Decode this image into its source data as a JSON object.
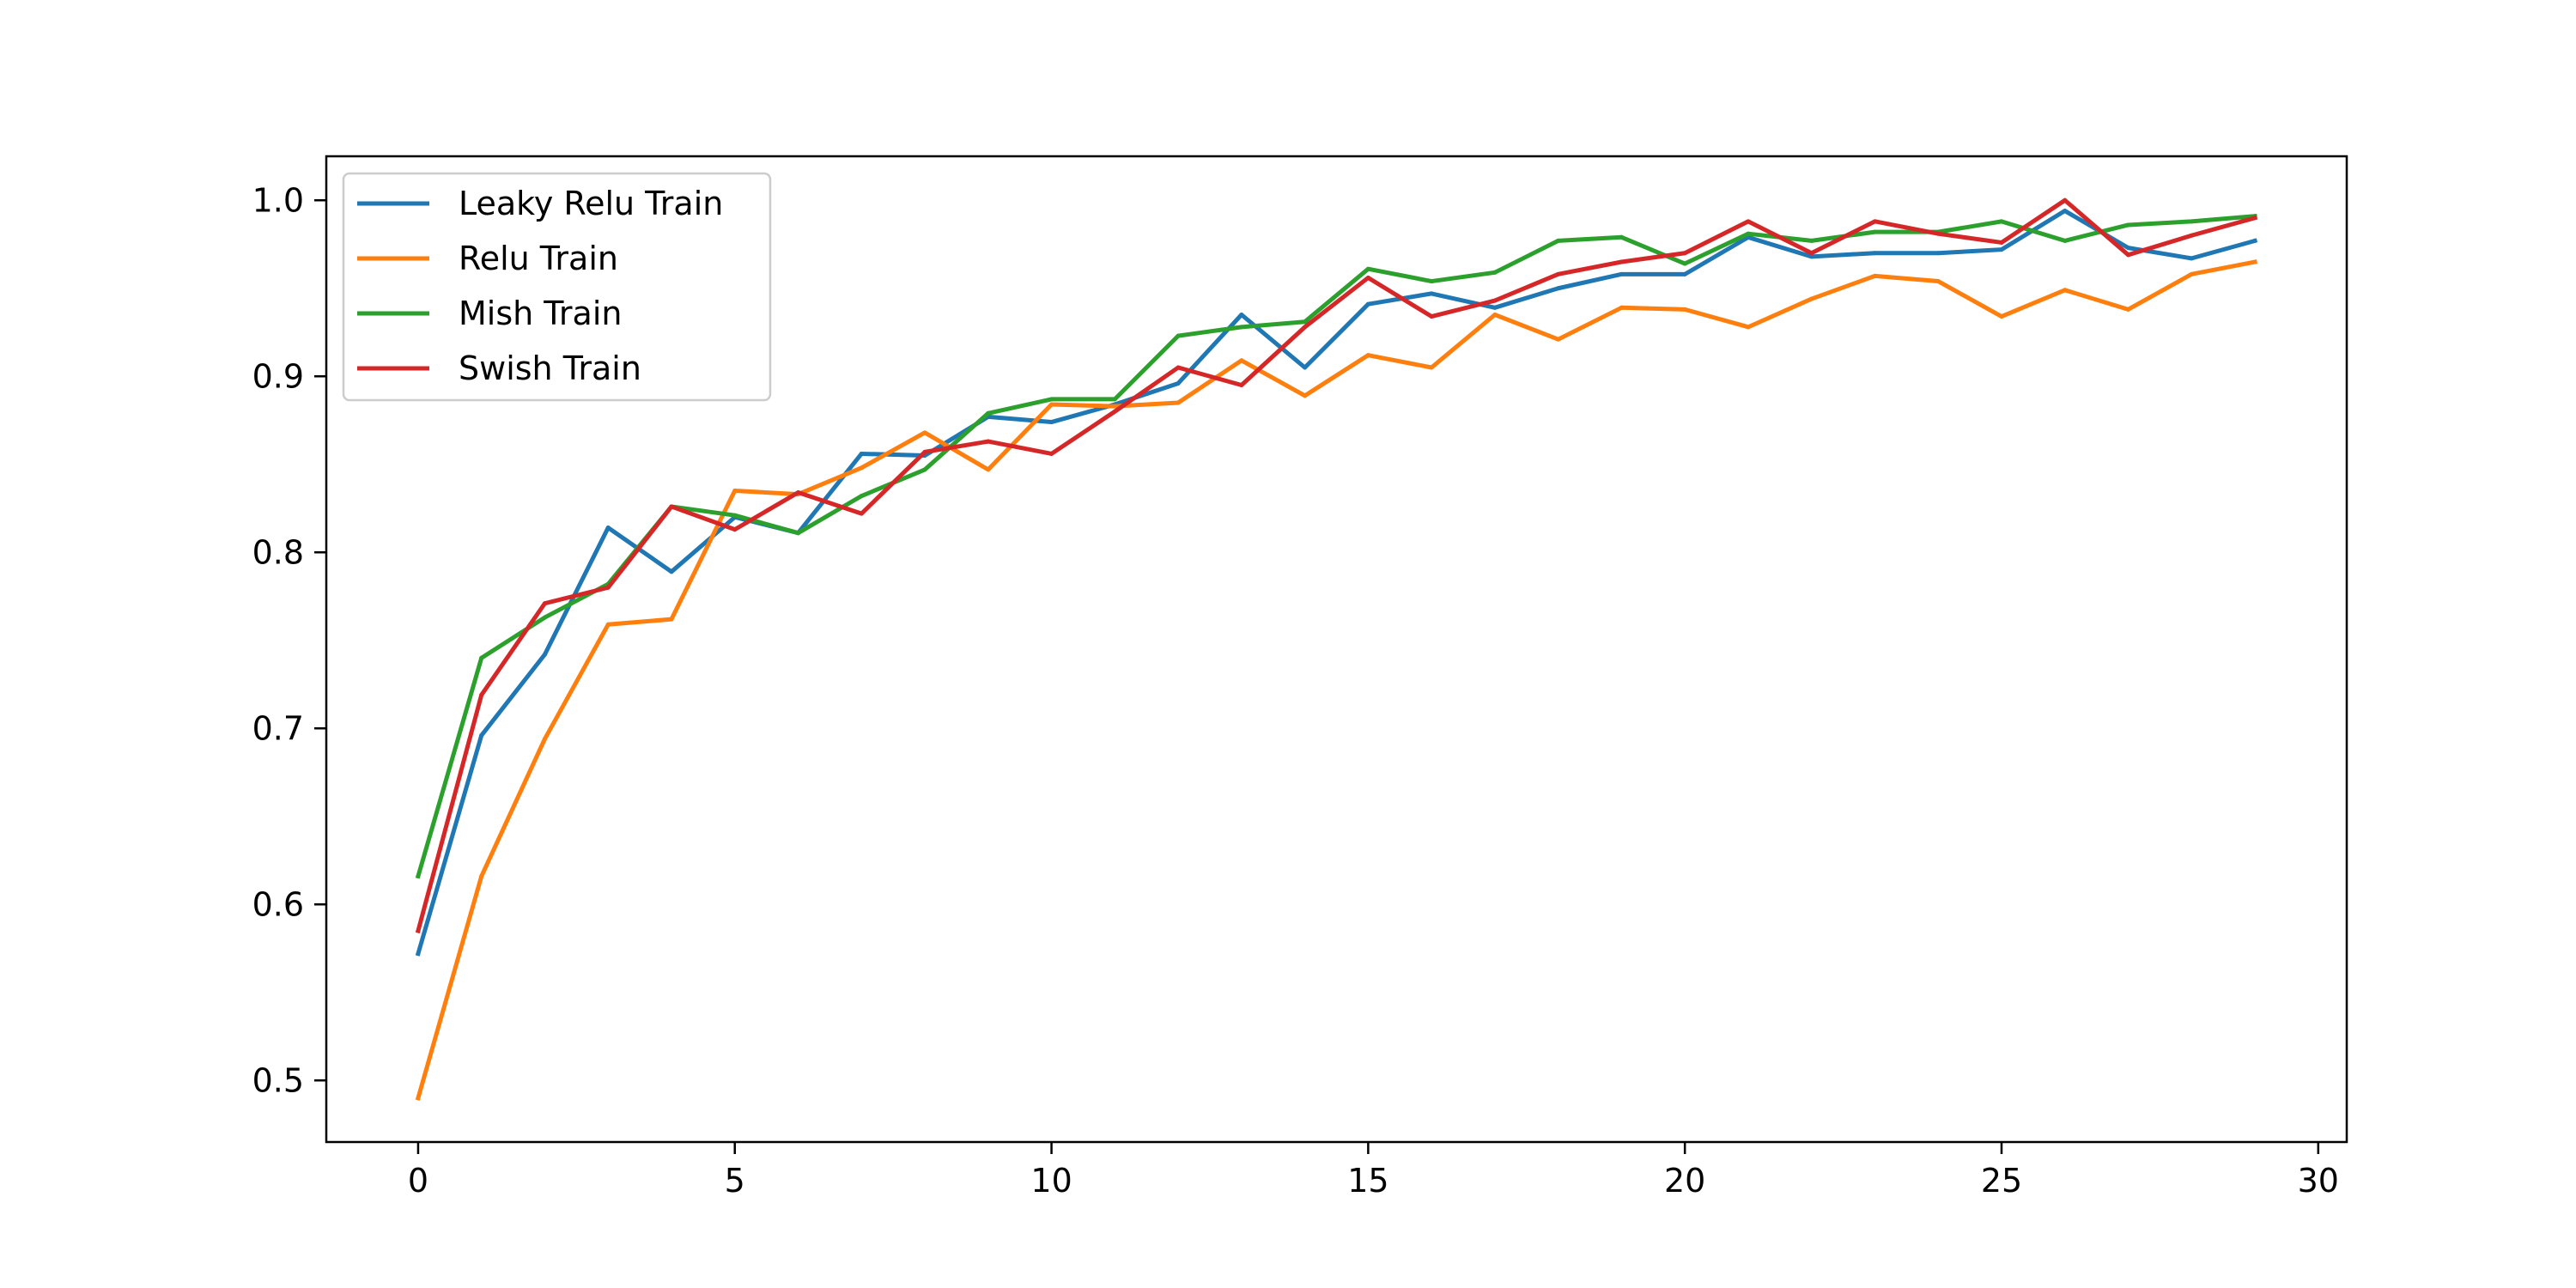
{
  "chart_data": {
    "type": "line",
    "title": "",
    "xlabel": "",
    "ylabel": "",
    "xlim": [
      -1.45,
      30.45
    ],
    "ylim": [
      0.465,
      1.025
    ],
    "x_ticks": [
      0,
      5,
      10,
      15,
      20,
      25,
      30
    ],
    "y_ticks": [
      0.5,
      0.6,
      0.7,
      0.8,
      0.9,
      1.0
    ],
    "x_tick_labels": [
      "0",
      "5",
      "10",
      "15",
      "20",
      "25",
      "30"
    ],
    "y_tick_labels": [
      "0.5",
      "0.6",
      "0.7",
      "0.8",
      "0.9",
      "1.0"
    ],
    "grid": false,
    "legend_position": "upper-left",
    "x": [
      0,
      1,
      2,
      3,
      4,
      5,
      6,
      7,
      8,
      9,
      10,
      11,
      12,
      13,
      14,
      15,
      16,
      17,
      18,
      19,
      20,
      21,
      22,
      23,
      24,
      25,
      26,
      27,
      28,
      29
    ],
    "series": [
      {
        "name": "Leaky Relu Train",
        "color": "#1f77b4",
        "values": [
          0.572,
          0.696,
          0.742,
          0.814,
          0.789,
          0.82,
          0.811,
          0.856,
          0.855,
          0.877,
          0.874,
          0.884,
          0.896,
          0.935,
          0.905,
          0.941,
          0.947,
          0.939,
          0.95,
          0.958,
          0.958,
          0.979,
          0.968,
          0.97,
          0.97,
          0.972,
          0.994,
          0.973,
          0.967,
          0.977
        ]
      },
      {
        "name": "Relu Train",
        "color": "#ff7f0e",
        "values": [
          0.49,
          0.616,
          0.694,
          0.759,
          0.762,
          0.835,
          0.833,
          0.848,
          0.868,
          0.847,
          0.884,
          0.883,
          0.885,
          0.909,
          0.889,
          0.912,
          0.905,
          0.935,
          0.921,
          0.939,
          0.938,
          0.928,
          0.944,
          0.957,
          0.954,
          0.934,
          0.949,
          0.938,
          0.958,
          0.965
        ]
      },
      {
        "name": "Mish Train",
        "color": "#2ca02c",
        "values": [
          0.616,
          0.74,
          0.763,
          0.782,
          0.826,
          0.821,
          0.811,
          0.832,
          0.847,
          0.879,
          0.887,
          0.887,
          0.923,
          0.928,
          0.931,
          0.961,
          0.954,
          0.959,
          0.977,
          0.979,
          0.964,
          0.981,
          0.977,
          0.982,
          0.982,
          0.988,
          0.977,
          0.986,
          0.988,
          0.991
        ]
      },
      {
        "name": "Swish Train",
        "color": "#d62728",
        "values": [
          0.585,
          0.719,
          0.771,
          0.78,
          0.826,
          0.813,
          0.834,
          0.822,
          0.857,
          0.863,
          0.856,
          0.88,
          0.905,
          0.895,
          0.928,
          0.956,
          0.934,
          0.943,
          0.958,
          0.965,
          0.97,
          0.988,
          0.97,
          0.988,
          0.981,
          0.976,
          1.0,
          0.969,
          0.98,
          0.99
        ]
      }
    ]
  }
}
